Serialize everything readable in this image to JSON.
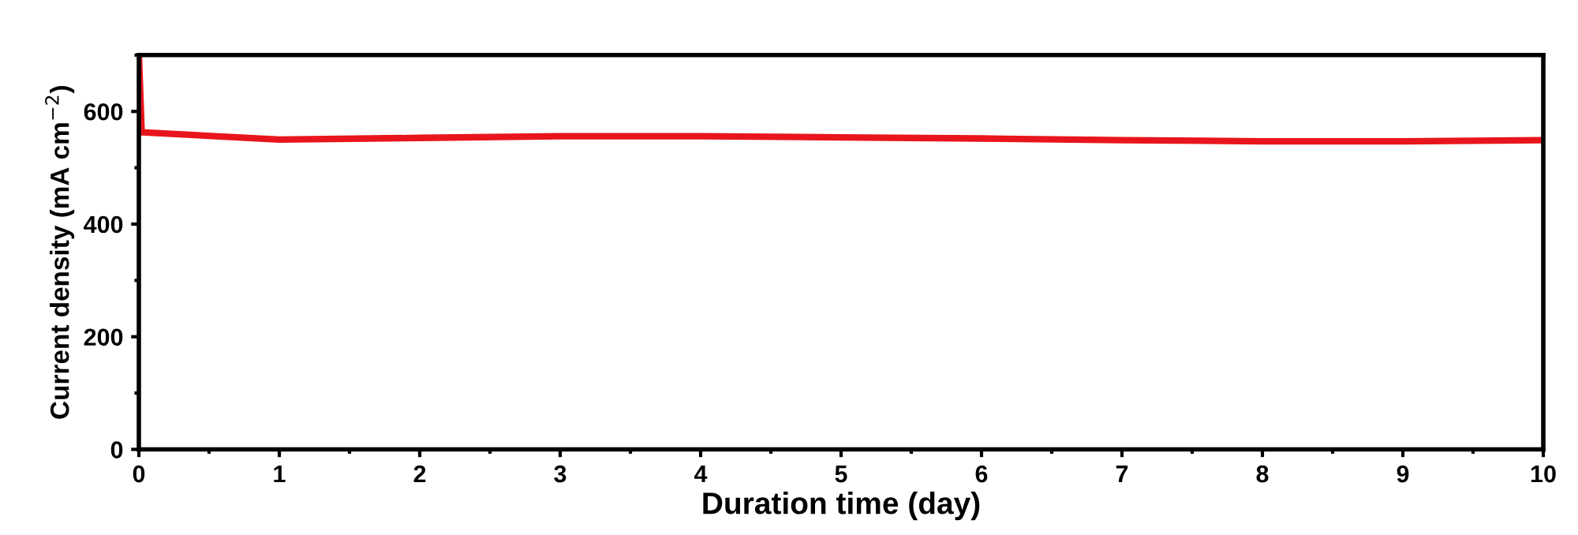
{
  "chart_data": {
    "type": "line",
    "xlabel": "Duration time (day)",
    "ylabel": "Current density (mA cm$^{−2}$)",
    "x": [
      0,
      0.02,
      1,
      2,
      3,
      4,
      5,
      6,
      7,
      8,
      9,
      10
    ],
    "series": [
      {
        "color": "#e8161c",
        "values": [
          700,
          563,
          550,
          553,
          556,
          556,
          554,
          552,
          549,
          547,
          547,
          549
        ]
      }
    ],
    "xlim": [
      0,
      10
    ],
    "ylim": [
      0,
      700
    ],
    "xticks": [
      0,
      1,
      2,
      3,
      4,
      5,
      6,
      7,
      8,
      9,
      10
    ],
    "yticks": [
      0,
      200,
      400,
      600
    ],
    "grid": false,
    "legend": false,
    "marker": "none",
    "line_style": "solid"
  }
}
